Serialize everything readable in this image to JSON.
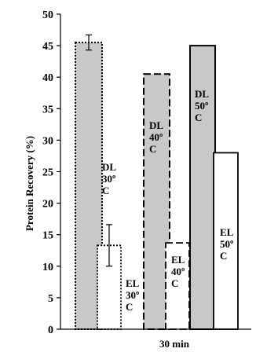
{
  "chart_data": {
    "type": "bar",
    "ylabel": "Protein Recovery (%)",
    "xlabel": "30 min",
    "ylim": [
      0,
      50
    ],
    "yticks": [
      0,
      5,
      10,
      15,
      20,
      25,
      30,
      35,
      40,
      45,
      50
    ],
    "grid": false,
    "legend": "none",
    "bars": [
      {
        "label_lines": [
          "DL",
          "30º",
          "C"
        ],
        "value": 45.5,
        "error": 1.2,
        "fill": "#c8c8c8",
        "border": "dotted"
      },
      {
        "label_lines": [
          "EL",
          "30º",
          "C"
        ],
        "value": 13.3,
        "error": 3.3,
        "fill": "#ffffff",
        "border": "dotted"
      },
      {
        "label_lines": [
          "DL",
          "40º",
          "C"
        ],
        "value": 40.5,
        "error": null,
        "fill": "#c8c8c8",
        "border": "dashed"
      },
      {
        "label_lines": [
          "EL",
          "40º",
          "C"
        ],
        "value": 13.7,
        "error": null,
        "fill": "#ffffff",
        "border": "dashed"
      },
      {
        "label_lines": [
          "DL",
          "50º",
          "C"
        ],
        "value": 45.0,
        "error": null,
        "fill": "#c8c8c8",
        "border": "solid"
      },
      {
        "label_lines": [
          "EL",
          "50º",
          "C"
        ],
        "value": 28.0,
        "error": null,
        "fill": "#ffffff",
        "border": "solid"
      }
    ]
  }
}
